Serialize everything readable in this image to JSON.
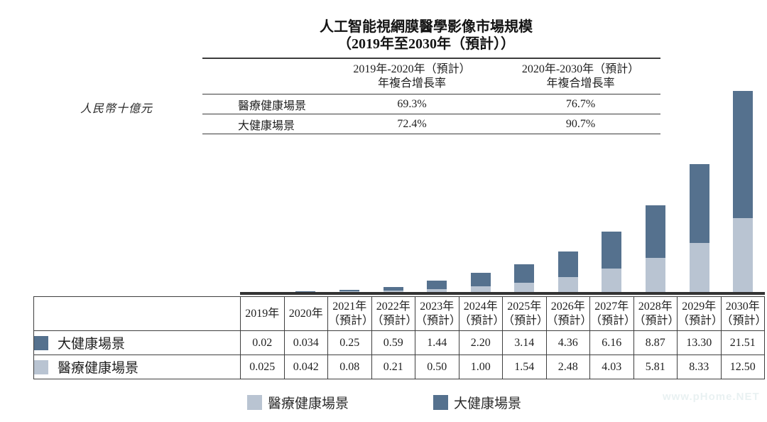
{
  "title": {
    "line1": "人工智能視網膜醫學影像市場規模",
    "line2": "（2019年至2030年（預計））"
  },
  "unit_label": "人民幣十億元",
  "cagr_table": {
    "columns": [
      {
        "period": "2019年-2020年（預計）",
        "metric": "年複合增長率"
      },
      {
        "period": "2020年-2030年（預計）",
        "metric": "年複合增長率"
      }
    ],
    "rows": [
      {
        "label": "醫療健康場景",
        "values": [
          "69.3%",
          "76.7%"
        ]
      },
      {
        "label": "大健康場景",
        "values": [
          "72.4%",
          "90.7%"
        ]
      }
    ]
  },
  "chart_data": {
    "type": "bar",
    "stacked": true,
    "title": "人工智能視網膜醫學影像市場規模（2019年至2030年（預計））",
    "ylabel": "人民幣十億元",
    "categories": [
      "2019年",
      "2020年",
      "2021年（預計）",
      "2022年（預計）",
      "2023年（預計）",
      "2024年（預計）",
      "2025年（預計）",
      "2026年（預計）",
      "2027年（預計）",
      "2028年（預計）",
      "2029年（預計）",
      "2030年（預計）"
    ],
    "series": [
      {
        "name": "醫療健康場景",
        "color": "#b9c4d2",
        "values": [
          0.025,
          0.042,
          0.08,
          0.21,
          0.5,
          1.0,
          1.54,
          2.48,
          4.03,
          5.81,
          8.33,
          12.5
        ]
      },
      {
        "name": "大健康場景",
        "color": "#55718e",
        "values": [
          0.02,
          0.034,
          0.25,
          0.59,
          1.44,
          2.2,
          3.14,
          4.36,
          6.16,
          8.87,
          13.3,
          21.51
        ]
      }
    ],
    "ylim": [
      0,
      34.01
    ],
    "grid": false,
    "legend_position": "bottom"
  },
  "data_table": {
    "projected_suffix": "（預計）",
    "rows": [
      {
        "label": "大健康場景",
        "color": "#55718e",
        "values": [
          "0.02",
          "0.034",
          "0.25",
          "0.59",
          "1.44",
          "2.20",
          "3.14",
          "4.36",
          "6.16",
          "8.87",
          "13.30",
          "21.51"
        ]
      },
      {
        "label": "醫療健康場景",
        "color": "#b9c4d2",
        "values": [
          "0.025",
          "0.042",
          "0.08",
          "0.21",
          "0.50",
          "1.00",
          "1.54",
          "2.48",
          "4.03",
          "5.81",
          "8.33",
          "12.50"
        ]
      }
    ]
  },
  "legend": {
    "items": [
      {
        "label": "醫療健康場景",
        "color": "#b9c4d2"
      },
      {
        "label": "大健康場景",
        "color": "#55718e"
      }
    ]
  },
  "watermark": "www.pHome.NET"
}
